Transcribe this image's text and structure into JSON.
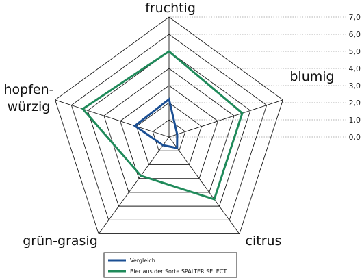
{
  "chart_data": {
    "type": "radar",
    "axes": [
      "fruchtig",
      "blumig",
      "citrus",
      "grün-grasig",
      "hopfen-würzig"
    ],
    "axis_label_lines": [
      [
        "fruchtig"
      ],
      [
        "blumig"
      ],
      [
        "citrus"
      ],
      [
        "grün-grasig"
      ],
      [
        "hopfen-",
        "würzig"
      ]
    ],
    "ticks": [
      "0,0",
      "1,0",
      "2,0",
      "3,0",
      "4,0",
      "5,0",
      "6,0",
      "7,0"
    ],
    "rmin": 0,
    "rmax": 7,
    "grid": true,
    "legend_position": "bottom",
    "series": [
      {
        "name": "Vergleich",
        "color": "#1b4f93",
        "values": [
          2.2,
          0.5,
          0.8,
          0.6,
          2.1
        ]
      },
      {
        "name": "Bier aus der Sorte SPALTER SELECT",
        "color": "#1f8a5a",
        "values": [
          5.0,
          4.5,
          4.5,
          2.8,
          5.3
        ]
      }
    ]
  }
}
